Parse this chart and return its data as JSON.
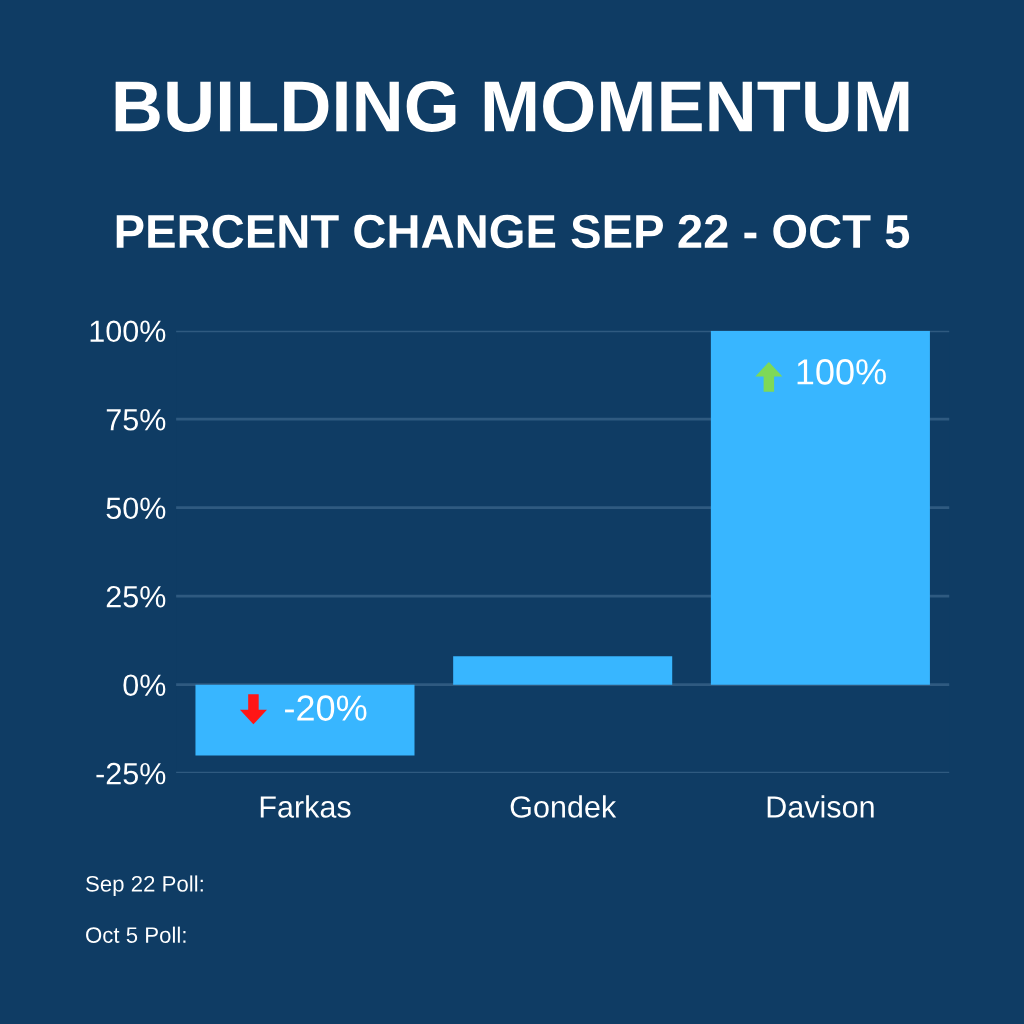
{
  "chart_data": {
    "type": "bar",
    "title": "BUILDING MOMENTUM",
    "subtitle": "PERCENT CHANGE SEP 22 - OCT 5",
    "categories": [
      "Farkas",
      "Gondek",
      "Davison"
    ],
    "values": [
      -20,
      8,
      100
    ],
    "value_labels": [
      "-20%",
      null,
      "100%"
    ],
    "color": "#38b6ff",
    "ylim": [
      -25,
      100
    ],
    "yticks": [
      {
        "value": -25,
        "label": "-25%"
      },
      {
        "value": 0,
        "label": "0%"
      },
      {
        "value": 25,
        "label": "25%"
      },
      {
        "value": 50,
        "label": "50%"
      },
      {
        "value": 75,
        "label": "75%"
      },
      {
        "value": 100,
        "label": "100%"
      }
    ],
    "grid": "y",
    "annotations": [
      "Sep 22 Poll:",
      "Oct 5 Poll:"
    ]
  }
}
